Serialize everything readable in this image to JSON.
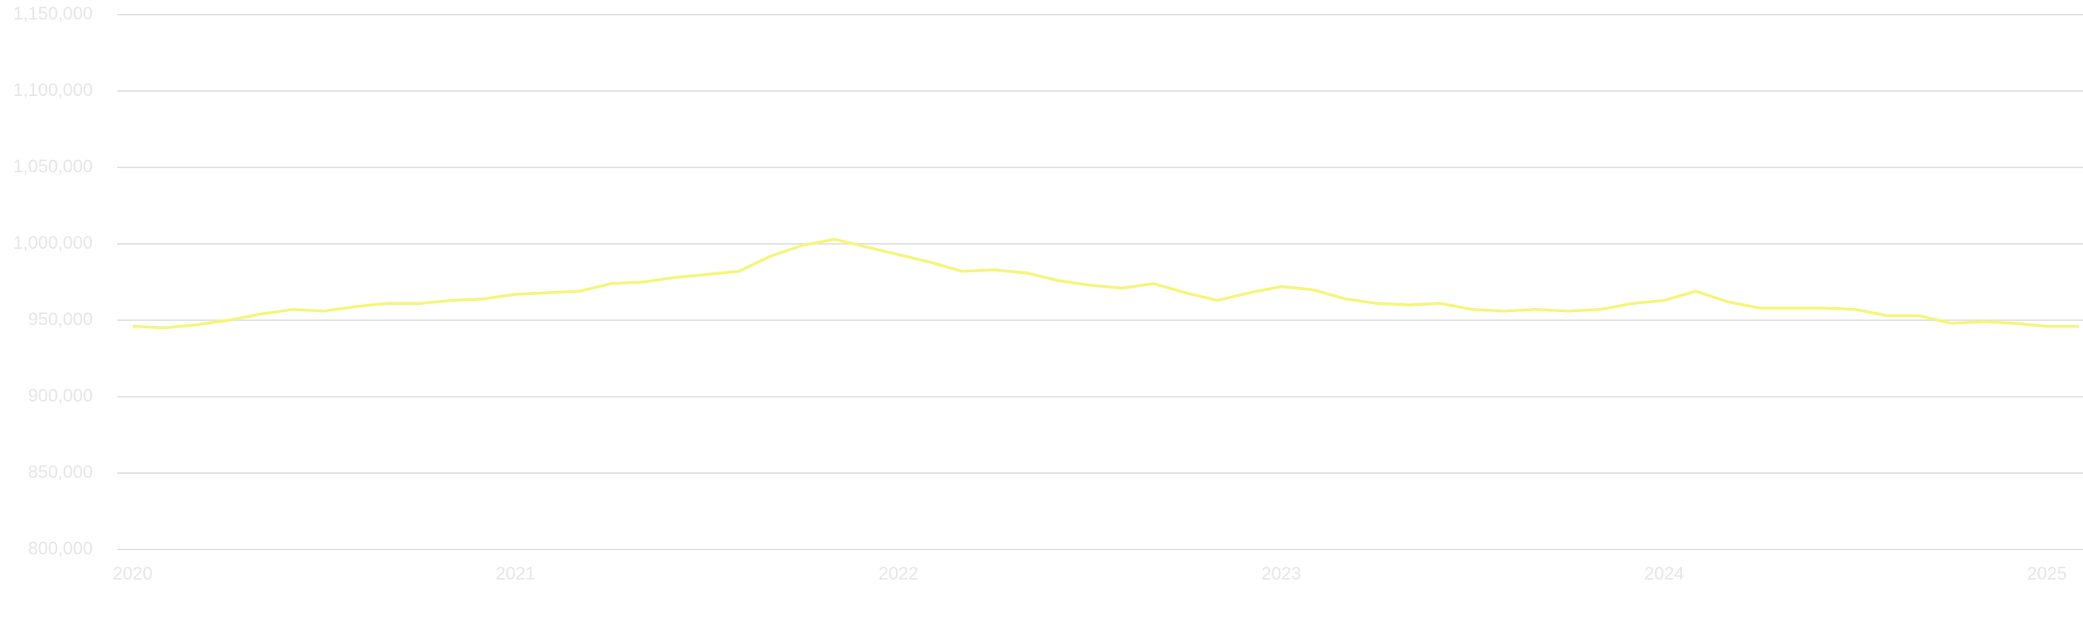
{
  "chart_data": {
    "type": "line",
    "categories": [
      "2020",
      null,
      null,
      null,
      null,
      null,
      null,
      null,
      null,
      null,
      null,
      null,
      "2021",
      null,
      null,
      null,
      null,
      null,
      null,
      null,
      null,
      null,
      null,
      null,
      "2022",
      null,
      null,
      null,
      null,
      null,
      null,
      null,
      null,
      null,
      null,
      null,
      "2023",
      null,
      null,
      null,
      null,
      null,
      null,
      null,
      null,
      null,
      null,
      null,
      "2024",
      null,
      null,
      null,
      null,
      null,
      null,
      null,
      null,
      null,
      null,
      null,
      "2025",
      null
    ],
    "series": [
      {
        "color": "#f5f57a",
        "values": [
          946000,
          945000,
          947000,
          950000,
          954000,
          957000,
          956000,
          959000,
          961000,
          961000,
          963000,
          964000,
          967000,
          968000,
          969000,
          974000,
          975000,
          978000,
          980000,
          982000,
          992000,
          999000,
          1003000,
          998000,
          993000,
          988000,
          982000,
          983000,
          981000,
          976000,
          973000,
          971000,
          974000,
          968000,
          963000,
          968000,
          972000,
          970000,
          964000,
          961000,
          960000,
          961000,
          957000,
          956000,
          957000,
          956000,
          957000,
          961000,
          963000,
          969000,
          962000,
          958000,
          958000,
          958000,
          957000,
          953000,
          953000,
          948000,
          949000,
          948000,
          946000,
          946000
        ]
      }
    ],
    "ylim": [
      800000,
      1150000
    ],
    "yticks": [
      {
        "value": 800000,
        "label": "800,000"
      },
      {
        "value": 850000,
        "label": "850,000"
      },
      {
        "value": 900000,
        "label": "900,000"
      },
      {
        "value": 950000,
        "label": "950,000"
      },
      {
        "value": 1000000,
        "label": "1,000,000"
      },
      {
        "value": 1050000,
        "label": "1,050,000"
      },
      {
        "value": 1100000,
        "label": "1,100,000"
      },
      {
        "value": 1150000,
        "label": "1,150,000"
      }
    ],
    "grid": true
  }
}
